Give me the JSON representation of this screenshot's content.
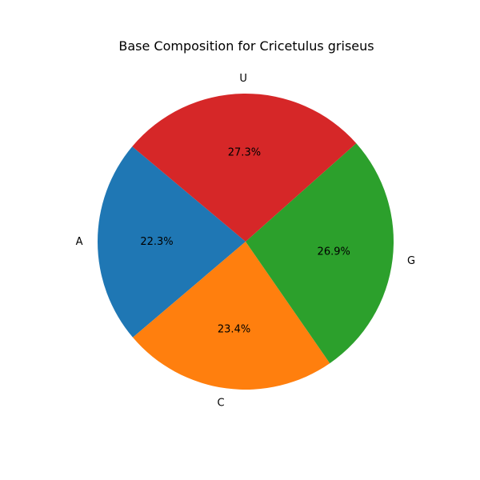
{
  "chart_data": {
    "type": "pie",
    "title": "Base Composition for Cricetulus griseus",
    "slices": [
      {
        "label": "A",
        "value": 22.3,
        "pct_label": "22.3%",
        "color": "#1f77b4"
      },
      {
        "label": "C",
        "value": 23.4,
        "pct_label": "23.4%",
        "color": "#ff7f0e"
      },
      {
        "label": "G",
        "value": 26.9,
        "pct_label": "26.9%",
        "color": "#2ca02c"
      },
      {
        "label": "U",
        "value": 27.3,
        "pct_label": "27.3%",
        "color": "#d62728"
      }
    ],
    "start_angle_deg": 140,
    "direction": "counterclockwise"
  }
}
